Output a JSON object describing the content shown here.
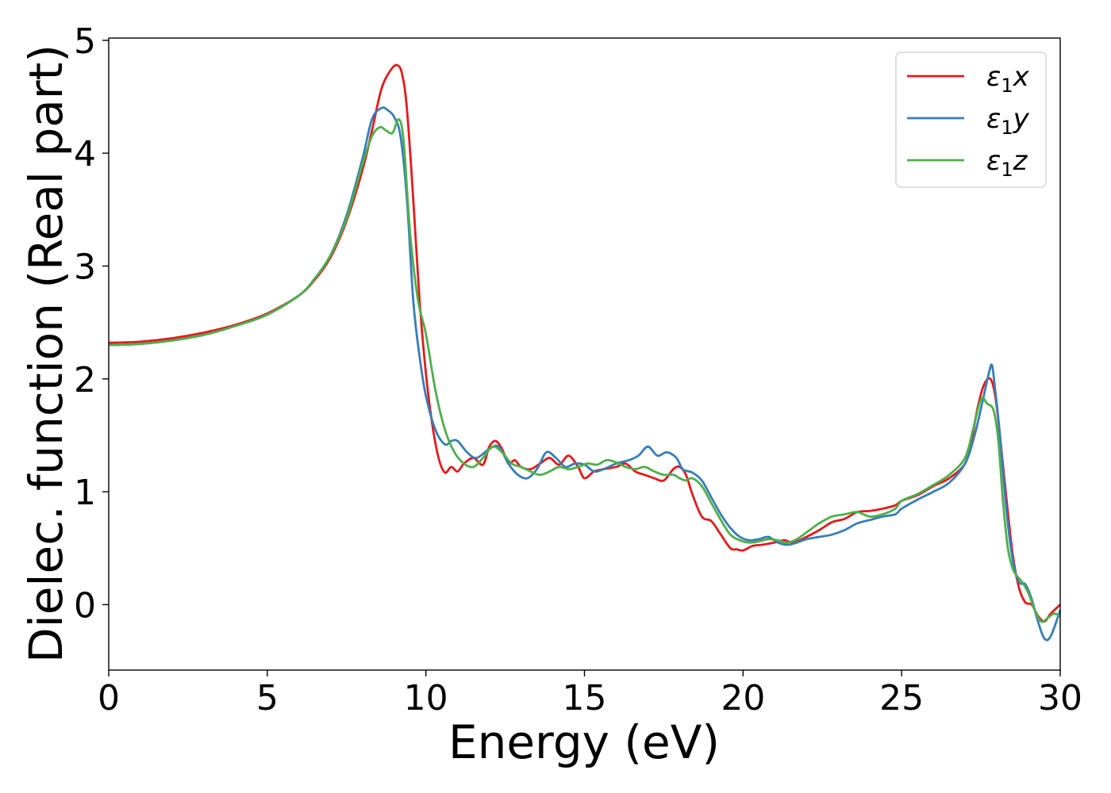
{
  "chart_data": {
    "type": "line",
    "xlabel": "Energy (eV)",
    "ylabel": "Dielec. function (Real part)",
    "xlim": [
      0,
      30
    ],
    "ylim": [
      -0.58,
      5.02
    ],
    "xticks": [
      0,
      5,
      10,
      15,
      20,
      25,
      30
    ],
    "yticks": [
      0,
      1,
      2,
      3,
      4,
      5
    ],
    "grid": false,
    "legend_position": "top-right",
    "series": [
      {
        "name": "ε₁x",
        "legend": {
          "base": "ε",
          "sub": "1",
          "var": "x"
        },
        "color": "#e41a1c",
        "x": [
          0,
          1,
          2,
          3,
          4,
          5,
          6,
          6.5,
          7,
          7.5,
          8,
          8.3,
          8.6,
          8.9,
          9.1,
          9.25,
          9.4,
          9.6,
          9.8,
          10,
          10.2,
          10.4,
          10.6,
          10.8,
          11,
          11.2,
          11.5,
          11.8,
          12,
          12.2,
          12.4,
          12.6,
          12.8,
          13,
          13.3,
          13.6,
          13.9,
          14.2,
          14.5,
          14.8,
          15,
          15.3,
          15.6,
          16,
          16.3,
          16.6,
          16.9,
          17.2,
          17.5,
          17.8,
          18,
          18.2,
          18.4,
          18.7,
          19,
          19.3,
          19.6,
          19.8,
          20,
          20.3,
          20.6,
          21,
          21.3,
          21.6,
          22,
          22.4,
          22.8,
          23.2,
          23.6,
          24,
          24.4,
          24.8,
          25,
          25.5,
          26,
          26.5,
          27,
          27.2,
          27.4,
          27.6,
          27.8,
          27.95,
          28.1,
          28.3,
          28.5,
          28.7,
          28.9,
          29.1,
          29.3,
          29.5,
          29.7,
          30
        ],
        "y": [
          2.32,
          2.33,
          2.36,
          2.41,
          2.48,
          2.58,
          2.74,
          2.88,
          3.08,
          3.4,
          3.85,
          4.2,
          4.57,
          4.74,
          4.78,
          4.7,
          4.4,
          3.6,
          2.7,
          2.05,
          1.6,
          1.3,
          1.17,
          1.22,
          1.18,
          1.25,
          1.3,
          1.24,
          1.4,
          1.45,
          1.38,
          1.25,
          1.28,
          1.22,
          1.2,
          1.25,
          1.3,
          1.24,
          1.32,
          1.22,
          1.12,
          1.18,
          1.2,
          1.22,
          1.25,
          1.18,
          1.15,
          1.12,
          1.1,
          1.2,
          1.22,
          1.15,
          0.98,
          0.78,
          0.74,
          0.62,
          0.5,
          0.49,
          0.48,
          0.52,
          0.53,
          0.55,
          0.57,
          0.55,
          0.6,
          0.66,
          0.73,
          0.76,
          0.82,
          0.83,
          0.85,
          0.88,
          0.92,
          0.97,
          1.05,
          1.12,
          1.25,
          1.45,
          1.75,
          1.95,
          2.0,
          1.85,
          1.5,
          0.95,
          0.45,
          0.15,
          0.02,
          0.0,
          -0.1,
          -0.15,
          -0.08,
          0.0
        ]
      },
      {
        "name": "ε₁y",
        "legend": {
          "base": "ε",
          "sub": "1",
          "var": "y"
        },
        "color": "#377eb8",
        "x": [
          0,
          1,
          2,
          3,
          4,
          5,
          6,
          6.5,
          7,
          7.5,
          8,
          8.3,
          8.6,
          8.8,
          9.0,
          9.2,
          9.4,
          9.6,
          9.8,
          10,
          10.3,
          10.6,
          10.8,
          11,
          11.3,
          11.6,
          12,
          12.3,
          12.6,
          12.9,
          13.2,
          13.5,
          13.8,
          14.1,
          14.4,
          14.7,
          15,
          15.3,
          15.6,
          16,
          16.4,
          16.7,
          17,
          17.3,
          17.6,
          17.9,
          18.1,
          18.4,
          18.7,
          19,
          19.3,
          19.6,
          19.9,
          20.2,
          20.5,
          20.8,
          21.1,
          21.4,
          21.7,
          22,
          22.4,
          22.8,
          23.2,
          23.6,
          24,
          24.4,
          24.8,
          25,
          25.5,
          26,
          26.5,
          27,
          27.3,
          27.55,
          27.75,
          27.85,
          27.95,
          28.1,
          28.3,
          28.5,
          28.7,
          28.9,
          29.1,
          29.3,
          29.5,
          29.7,
          30
        ],
        "y": [
          2.3,
          2.31,
          2.34,
          2.39,
          2.47,
          2.57,
          2.74,
          2.89,
          3.1,
          3.45,
          3.95,
          4.3,
          4.4,
          4.38,
          4.32,
          4.15,
          3.6,
          2.7,
          2.2,
          1.85,
          1.55,
          1.42,
          1.45,
          1.45,
          1.35,
          1.3,
          1.38,
          1.4,
          1.25,
          1.15,
          1.12,
          1.2,
          1.35,
          1.3,
          1.22,
          1.25,
          1.24,
          1.18,
          1.2,
          1.25,
          1.28,
          1.32,
          1.4,
          1.32,
          1.35,
          1.3,
          1.2,
          1.17,
          1.1,
          0.95,
          0.8,
          0.68,
          0.6,
          0.57,
          0.58,
          0.6,
          0.55,
          0.53,
          0.55,
          0.58,
          0.6,
          0.62,
          0.66,
          0.72,
          0.75,
          0.78,
          0.8,
          0.85,
          0.93,
          1.0,
          1.08,
          1.25,
          1.5,
          1.8,
          2.05,
          2.12,
          1.9,
          1.5,
          0.85,
          0.4,
          0.2,
          0.18,
          0.05,
          -0.15,
          -0.3,
          -0.28,
          -0.05
        ]
      },
      {
        "name": "ε₁z",
        "legend": {
          "base": "ε",
          "sub": "1",
          "var": "z"
        },
        "color": "#4daf4a",
        "x": [
          0,
          1,
          2,
          3,
          4,
          5,
          6,
          6.5,
          7,
          7.5,
          8,
          8.3,
          8.55,
          8.75,
          8.95,
          9.15,
          9.3,
          9.5,
          9.75,
          10,
          10.3,
          10.6,
          10.9,
          11.2,
          11.5,
          11.8,
          12.1,
          12.4,
          12.7,
          13,
          13.3,
          13.6,
          13.9,
          14.2,
          14.5,
          14.8,
          15.1,
          15.4,
          15.7,
          16,
          16.3,
          16.6,
          16.9,
          17.2,
          17.5,
          17.8,
          18.0,
          18.2,
          18.4,
          18.7,
          19,
          19.3,
          19.6,
          19.9,
          20.2,
          20.5,
          20.8,
          21.1,
          21.4,
          21.7,
          22,
          22.4,
          22.8,
          23.2,
          23.6,
          24,
          24.4,
          24.8,
          25,
          25.5,
          26,
          26.5,
          27,
          27.25,
          27.5,
          27.7,
          27.9,
          28.05,
          28.2,
          28.35,
          28.5,
          28.65,
          28.8,
          29,
          29.2,
          29.4,
          29.6,
          29.8,
          30
        ],
        "y": [
          2.3,
          2.31,
          2.34,
          2.39,
          2.47,
          2.57,
          2.74,
          2.89,
          3.1,
          3.42,
          3.9,
          4.15,
          4.23,
          4.2,
          4.18,
          4.3,
          4.1,
          3.3,
          2.7,
          2.4,
          1.9,
          1.55,
          1.35,
          1.25,
          1.22,
          1.3,
          1.4,
          1.35,
          1.25,
          1.22,
          1.18,
          1.15,
          1.18,
          1.22,
          1.2,
          1.22,
          1.25,
          1.24,
          1.28,
          1.26,
          1.22,
          1.2,
          1.22,
          1.18,
          1.15,
          1.15,
          1.12,
          1.1,
          1.12,
          1.05,
          0.9,
          0.75,
          0.62,
          0.57,
          0.55,
          0.56,
          0.58,
          0.57,
          0.55,
          0.58,
          0.64,
          0.72,
          0.78,
          0.8,
          0.82,
          0.78,
          0.8,
          0.85,
          0.92,
          0.98,
          1.06,
          1.15,
          1.3,
          1.55,
          1.82,
          1.78,
          1.72,
          1.45,
          0.9,
          0.5,
          0.32,
          0.25,
          0.2,
          0.1,
          -0.05,
          -0.15,
          -0.12,
          -0.08,
          -0.1
        ]
      }
    ]
  }
}
